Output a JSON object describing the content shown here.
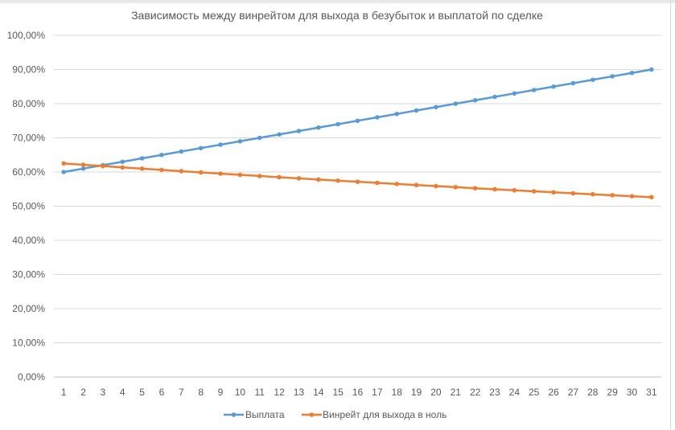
{
  "chart_data": {
    "type": "line",
    "title": "Зависимость между винрейтом для выхода в безубыток и выплатой по сделке",
    "xlabel": "",
    "ylabel": "",
    "categories": [
      "1",
      "2",
      "3",
      "4",
      "5",
      "6",
      "7",
      "8",
      "9",
      "10",
      "11",
      "12",
      "13",
      "14",
      "15",
      "16",
      "17",
      "18",
      "19",
      "20",
      "21",
      "22",
      "23",
      "24",
      "25",
      "26",
      "27",
      "28",
      "29",
      "30",
      "31"
    ],
    "ylim": [
      0,
      1
    ],
    "y_ticks": [
      "0,00%",
      "10,00%",
      "20,00%",
      "30,00%",
      "40,00%",
      "50,00%",
      "60,00%",
      "70,00%",
      "80,00%",
      "90,00%",
      "100,00%"
    ],
    "grid": true,
    "legend_position": "bottom",
    "series": [
      {
        "name": "Выплата",
        "color": "#5b9bd5",
        "values": [
          0.6,
          0.61,
          0.62,
          0.63,
          0.64,
          0.65,
          0.66,
          0.67,
          0.68,
          0.69,
          0.7,
          0.71,
          0.72,
          0.73,
          0.74,
          0.75,
          0.76,
          0.77,
          0.78,
          0.79,
          0.8,
          0.81,
          0.82,
          0.83,
          0.84,
          0.85,
          0.86,
          0.87,
          0.88,
          0.89,
          0.9
        ]
      },
      {
        "name": "Винрейт для выхода в ноль",
        "color": "#ed7d31",
        "values": [
          0.625,
          0.6211,
          0.6173,
          0.6135,
          0.6098,
          0.6061,
          0.6024,
          0.5988,
          0.5952,
          0.5917,
          0.5882,
          0.5848,
          0.5814,
          0.578,
          0.5747,
          0.5714,
          0.5682,
          0.565,
          0.5618,
          0.5587,
          0.5556,
          0.5525,
          0.5495,
          0.5464,
          0.5435,
          0.5405,
          0.5376,
          0.5348,
          0.5319,
          0.5291,
          0.5263
        ]
      }
    ]
  }
}
